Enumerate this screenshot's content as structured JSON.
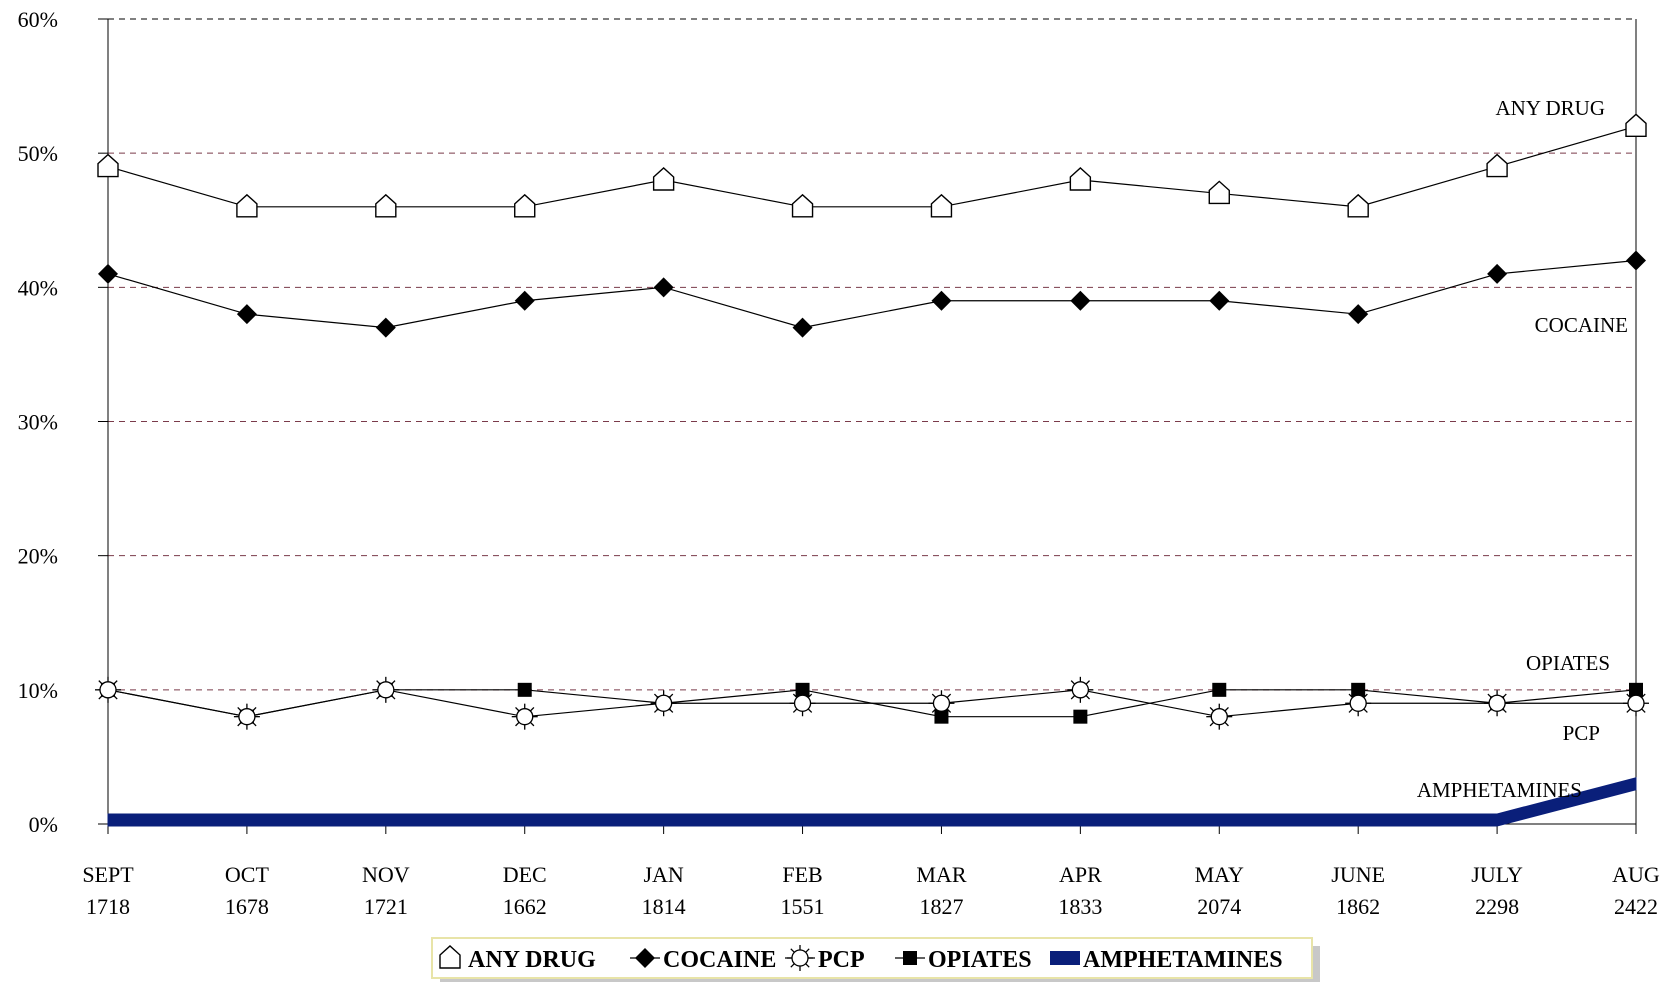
{
  "chart_data": {
    "type": "line",
    "categories": [
      {
        "month": "SEPT",
        "count": "1718"
      },
      {
        "month": "OCT",
        "count": "1678"
      },
      {
        "month": "NOV",
        "count": "1721"
      },
      {
        "month": "DEC",
        "count": "1662"
      },
      {
        "month": "JAN",
        "count": "1814"
      },
      {
        "month": "FEB",
        "count": "1551"
      },
      {
        "month": "MAR",
        "count": "1827"
      },
      {
        "month": "APR",
        "count": "1833"
      },
      {
        "month": "MAY",
        "count": "2074"
      },
      {
        "month": "JUNE",
        "count": "1862"
      },
      {
        "month": "JULY",
        "count": "2298"
      },
      {
        "month": "AUG",
        "count": "2422"
      }
    ],
    "yticks": [
      "0%",
      "10%",
      "20%",
      "30%",
      "40%",
      "50%",
      "60%"
    ],
    "ylim": [
      0,
      60
    ],
    "grid": true,
    "legend_position": "bottom",
    "series": [
      {
        "name": "ANY DRUG",
        "marker": "house-icon",
        "values": [
          49,
          46,
          46,
          46,
          48,
          46,
          46,
          48,
          47,
          46,
          49,
          52
        ]
      },
      {
        "name": "COCAINE",
        "marker": "diamond-icon",
        "values": [
          41,
          38,
          37,
          39,
          40,
          37,
          39,
          39,
          39,
          38,
          41,
          42
        ]
      },
      {
        "name": "PCP",
        "marker": "sun-icon",
        "values": [
          10,
          8,
          10,
          8,
          9,
          9,
          9,
          10,
          8,
          9,
          9,
          9
        ]
      },
      {
        "name": "OPIATES",
        "marker": "square-icon",
        "values": [
          10,
          8,
          10,
          10,
          9,
          10,
          8,
          8,
          10,
          10,
          9,
          10
        ]
      },
      {
        "name": "AMPHETAMINES",
        "marker": "thick-line",
        "values": [
          0.3,
          0.3,
          0.3,
          0.3,
          0.3,
          0.3,
          0.3,
          0.3,
          0.3,
          0.3,
          0.3,
          3.0
        ],
        "color": "#0a1f7a"
      }
    ],
    "annotations": [
      {
        "text": "ANY DRUG",
        "series": 0
      },
      {
        "text": "COCAINE",
        "series": 1
      },
      {
        "text": "OPIATES",
        "series": 3
      },
      {
        "text": "PCP",
        "series": 2
      },
      {
        "text": "AMPHETAMINES",
        "series": 4
      }
    ]
  }
}
